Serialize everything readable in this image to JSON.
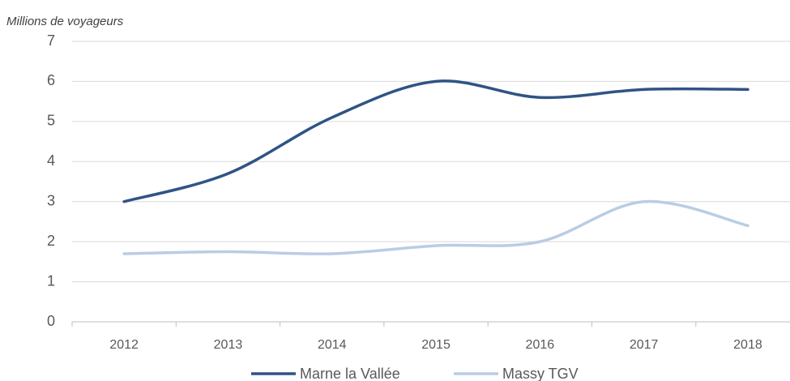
{
  "chart_data": {
    "type": "line",
    "y_axis_label": "Millions de voyageurs",
    "categories": [
      "2012",
      "2013",
      "2014",
      "2015",
      "2016",
      "2017",
      "2018"
    ],
    "series": [
      {
        "name": "Marne la Vallée",
        "color": "#2f5485",
        "values": [
          3.0,
          3.7,
          5.1,
          6.0,
          5.6,
          5.8,
          5.8
        ]
      },
      {
        "name": "Massy TGV",
        "color": "#b9cde4",
        "values": [
          1.7,
          1.75,
          1.7,
          1.9,
          2.0,
          3.0,
          2.4
        ]
      }
    ],
    "ylim": [
      0,
      7
    ],
    "yticks": [
      0,
      1,
      2,
      3,
      4,
      5,
      6,
      7
    ],
    "grid": true,
    "smooth": true,
    "legend": "bottom"
  }
}
